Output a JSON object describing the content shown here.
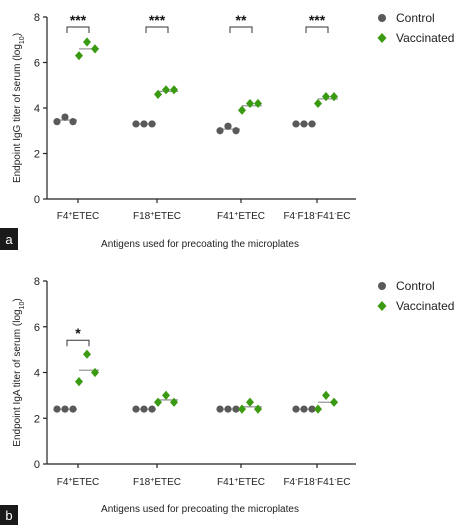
{
  "colors": {
    "control": "#5a5a5a",
    "vaccinated": "#3a9a12",
    "mean": "#999999"
  },
  "chart_data": [
    {
      "panel": "a",
      "type": "scatter",
      "ylabel_main": "Endpoint IgG titer of serum (log",
      "ylabel_sub": "10",
      "ylabel_close": ")",
      "xlabel": "Antigens used for precoating the microplates",
      "ylim": [
        0,
        8
      ],
      "yticks": [
        "0",
        "2",
        "4",
        "6",
        "8"
      ],
      "categories": [
        {
          "pre": "F4",
          "s1": "+",
          "mid": "ETEC",
          "s2": "",
          "mid2": "",
          "s3": "",
          "post": ""
        },
        {
          "pre": "F18",
          "s1": "+",
          "mid": "ETEC",
          "s2": "",
          "mid2": "",
          "s3": "",
          "post": ""
        },
        {
          "pre": "F41",
          "s1": "+",
          "mid": "ETEC",
          "s2": "",
          "mid2": "",
          "s3": "",
          "post": ""
        },
        {
          "pre": "F4",
          "s1": "-",
          "mid": "F18",
          "s2": "-",
          "mid2": "F41",
          "s3": "-",
          "post": "EC"
        }
      ],
      "legend": [
        "Control",
        "Vaccinated"
      ],
      "series": [
        {
          "name": "Control",
          "marker": "circle",
          "points": [
            [
              3.4,
              3.6,
              3.4
            ],
            [
              3.3,
              3.3,
              3.3
            ],
            [
              3.0,
              3.2,
              3.0
            ],
            [
              3.3,
              3.3,
              3.3
            ]
          ],
          "means": [
            3.47,
            3.3,
            3.07,
            3.3
          ]
        },
        {
          "name": "Vaccinated",
          "marker": "diamond",
          "points": [
            [
              6.3,
              6.9,
              6.6
            ],
            [
              4.6,
              4.8,
              4.8
            ],
            [
              3.9,
              4.2,
              4.2
            ],
            [
              4.2,
              4.5,
              4.5
            ]
          ],
          "means": [
            6.6,
            4.73,
            4.1,
            4.4
          ]
        }
      ],
      "significance": [
        "***",
        "***",
        "**",
        "***"
      ]
    },
    {
      "panel": "b",
      "type": "scatter",
      "ylabel_main": "Endpoint IgA titer of serum (log",
      "ylabel_sub": "10",
      "ylabel_close": ")",
      "xlabel": "Antigens used for precoating the microplates",
      "ylim": [
        0,
        8
      ],
      "yticks": [
        "0",
        "2",
        "4",
        "6",
        "8"
      ],
      "categories": [
        {
          "pre": "F4",
          "s1": "+",
          "mid": "ETEC",
          "s2": "",
          "mid2": "",
          "s3": "",
          "post": ""
        },
        {
          "pre": "F18",
          "s1": "+",
          "mid": "ETEC",
          "s2": "",
          "mid2": "",
          "s3": "",
          "post": ""
        },
        {
          "pre": "F41",
          "s1": "+",
          "mid": "ETEC",
          "s2": "",
          "mid2": "",
          "s3": "",
          "post": ""
        },
        {
          "pre": "F4",
          "s1": "-",
          "mid": "F18",
          "s2": "-",
          "mid2": "F41",
          "s3": "-",
          "post": "EC"
        }
      ],
      "legend": [
        "Control",
        "Vaccinated"
      ],
      "series": [
        {
          "name": "Control",
          "marker": "circle",
          "points": [
            [
              2.4,
              2.4,
              2.4
            ],
            [
              2.4,
              2.4,
              2.4
            ],
            [
              2.4,
              2.4,
              2.4
            ],
            [
              2.4,
              2.4,
              2.4
            ]
          ],
          "means": [
            2.4,
            2.4,
            2.4,
            2.4
          ]
        },
        {
          "name": "Vaccinated",
          "marker": "diamond",
          "points": [
            [
              3.6,
              4.8,
              4.0
            ],
            [
              2.7,
              3.0,
              2.7
            ],
            [
              2.4,
              2.7,
              2.4
            ],
            [
              2.4,
              3.0,
              2.7
            ]
          ],
          "means": [
            4.1,
            2.8,
            2.5,
            2.7
          ]
        }
      ],
      "significance": [
        "*",
        "",
        "",
        ""
      ]
    }
  ]
}
